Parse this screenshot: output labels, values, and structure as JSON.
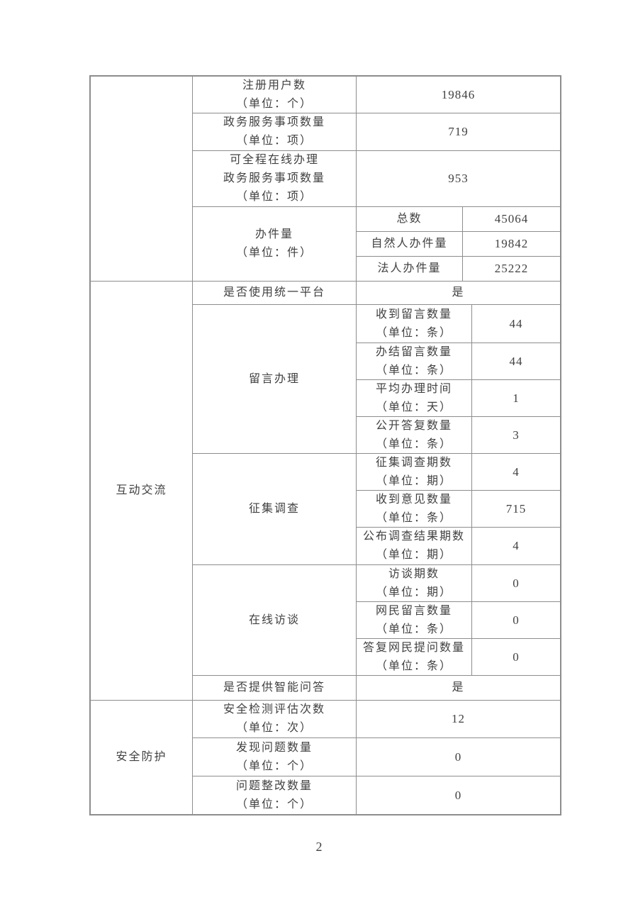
{
  "page_number": "2",
  "table": {
    "section1": {
      "category": "",
      "rows": [
        {
          "label": "注册用户数\n（单位：个）",
          "value": "19846"
        },
        {
          "label": "政务服务事项数量\n（单位：项）",
          "value": "719"
        },
        {
          "label": "可全程在线办理\n政务服务事项数量\n（单位：项）",
          "value": "953"
        }
      ],
      "banjian": {
        "label": "办件量\n（单位：件）",
        "subrows": [
          {
            "label": "总数",
            "value": "45064"
          },
          {
            "label": "自然人办件量",
            "value": "19842"
          },
          {
            "label": "法人办件量",
            "value": "25222"
          }
        ]
      }
    },
    "section2": {
      "category": "互动交流",
      "unified_platform": {
        "label": "是否使用统一平台",
        "value": "是"
      },
      "groups": [
        {
          "label": "留言办理",
          "subrows": [
            {
              "label": "收到留言数量\n（单位：条）",
              "value": "44"
            },
            {
              "label": "办结留言数量\n（单位：条）",
              "value": "44"
            },
            {
              "label": "平均办理时间\n（单位：天）",
              "value": "1"
            },
            {
              "label": "公开答复数量\n（单位：条）",
              "value": "3"
            }
          ]
        },
        {
          "label": "征集调查",
          "subrows": [
            {
              "label": "征集调查期数\n（单位：期）",
              "value": "4"
            },
            {
              "label": "收到意见数量\n（单位：条）",
              "value": "715"
            },
            {
              "label": "公布调查结果期数\n（单位：期）",
              "value": "4"
            }
          ]
        },
        {
          "label": "在线访谈",
          "subrows": [
            {
              "label": "访谈期数\n（单位：期）",
              "value": "0"
            },
            {
              "label": "网民留言数量\n（单位：条）",
              "value": "0"
            },
            {
              "label": "答复网民提问数量\n（单位：条）",
              "value": "0"
            }
          ]
        }
      ],
      "smart_qa": {
        "label": "是否提供智能问答",
        "value": "是"
      }
    },
    "section3": {
      "category": "安全防护",
      "rows": [
        {
          "label": "安全检测评估次数\n（单位：次）",
          "value": "12"
        },
        {
          "label": "发现问题数量\n（单位：个）",
          "value": "0"
        },
        {
          "label": "问题整改数量\n（单位：个）",
          "value": "0"
        }
      ]
    }
  }
}
